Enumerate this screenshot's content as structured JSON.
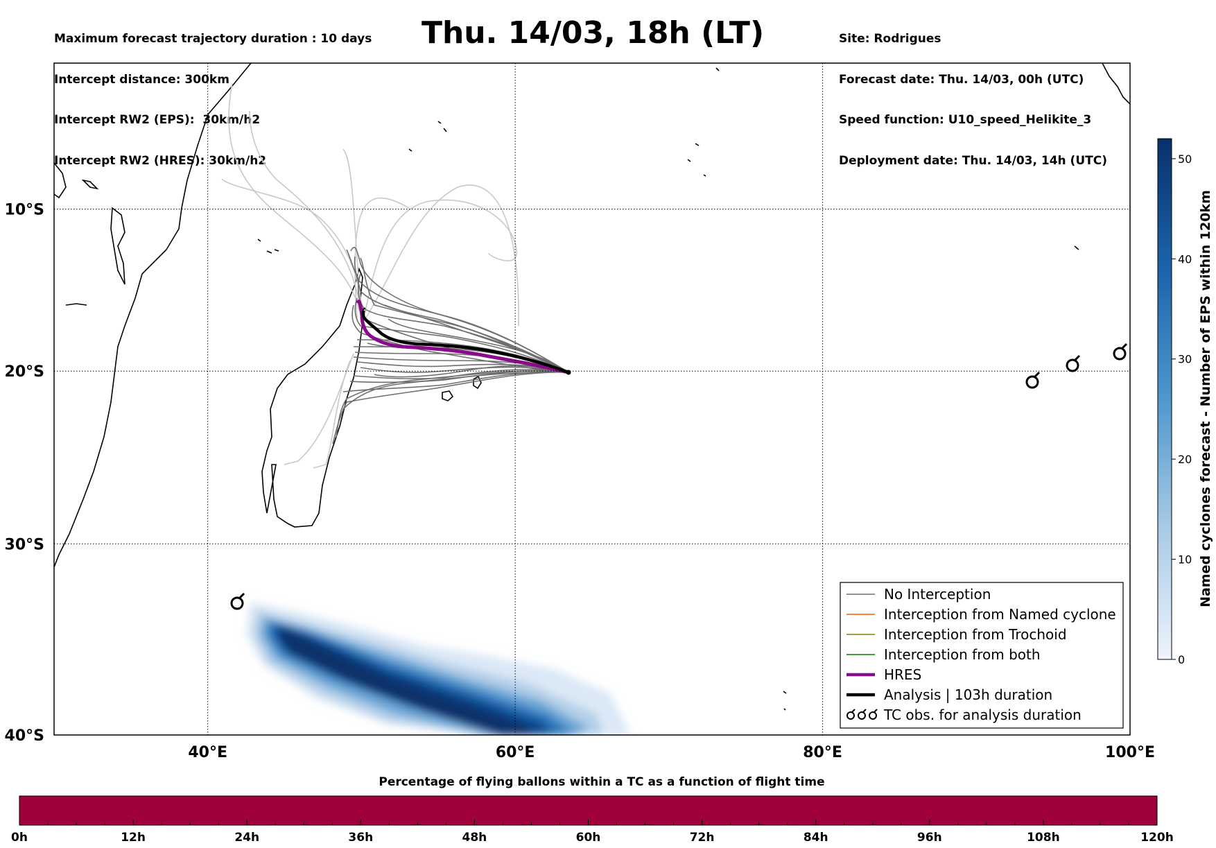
{
  "header": {
    "left_lines": [
      "Maximum forecast trajectory duration : 10 days",
      "Intercept distance: 300km",
      "Intercept RW2 (EPS):  30km/h2",
      "Intercept RW2 (HRES): 30km/h2"
    ],
    "right_lines": [
      "Site: Rodrigues",
      "Forecast date: Thu. 14/03, 00h (UTC)",
      "Speed function: U10_speed_Helikite_3",
      "Deployment date: Thu. 14/03, 14h (UTC)"
    ],
    "title": "Thu. 14/03, 18h (LT)"
  },
  "map": {
    "lon_range": [
      30,
      100
    ],
    "lat_range": [
      -40,
      -0.7
    ],
    "lon_ticks": [
      {
        "value": 40,
        "label": "40°E"
      },
      {
        "value": 60,
        "label": "60°E"
      },
      {
        "value": 80,
        "label": "80°E"
      },
      {
        "value": 100,
        "label": "100°E"
      }
    ],
    "lat_ticks": [
      {
        "value": -10,
        "label": "10°S"
      },
      {
        "value": -20,
        "label": "20°S"
      },
      {
        "value": -30,
        "label": "30°S"
      },
      {
        "value": -40,
        "label": "40°S"
      }
    ],
    "launch_site": {
      "lon": 63.4,
      "lat": -19.7
    },
    "tc_observations": [
      {
        "lon": 41.9,
        "lat": -33.1
      },
      {
        "lon": 93.6,
        "lat": -20.3
      },
      {
        "lon": 96.2,
        "lat": -19.2
      },
      {
        "lon": 99.4,
        "lat": -18.5
      }
    ],
    "colors": {
      "no_interception": "#707070",
      "named_cyclone": "#ff5a00",
      "trochoid": "#808000",
      "both": "#008000",
      "hres": "#8b0a8b",
      "analysis": "#000000",
      "faint_trajectories": "#c8c8c8"
    }
  },
  "legend": {
    "items": [
      {
        "label": "No Interception",
        "style": "no_interception"
      },
      {
        "label": "Interception from Named cyclone",
        "style": "named_cyclone"
      },
      {
        "label": "Interception from Trochoid",
        "style": "trochoid"
      },
      {
        "label": "Interception from both",
        "style": "both"
      },
      {
        "label": "HRES",
        "style": "hres"
      },
      {
        "label": "Analysis | 103h duration",
        "style": "analysis"
      },
      {
        "label": "TC obs. for analysis duration",
        "style": "tc_obs"
      }
    ]
  },
  "colorbar": {
    "title": "Named cyclones forecast - Number of EPS within 120km",
    "min": 0,
    "max": 52,
    "ticks": [
      0,
      10,
      20,
      30,
      40,
      50
    ],
    "color_low": "#e6effa",
    "color_high": "#08306b"
  },
  "timebar": {
    "title": "Percentage of flying ballons within a TC as a function of flight time",
    "color": "#a0003c",
    "ticks": [
      "0h",
      "12h",
      "24h",
      "36h",
      "48h",
      "60h",
      "72h",
      "84h",
      "96h",
      "108h",
      "120h"
    ]
  }
}
